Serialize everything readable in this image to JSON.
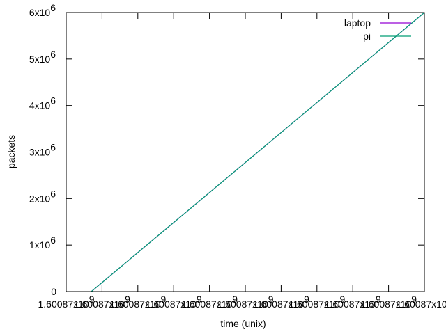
{
  "chart_data": {
    "type": "line",
    "title": "",
    "xlabel": "time (unix)",
    "ylabel": "packets",
    "y_ticks": [
      {
        "value": 0,
        "label": "0",
        "exp": ""
      },
      {
        "value": 1000000,
        "label": "1x10",
        "exp": "6"
      },
      {
        "value": 2000000,
        "label": "2x10",
        "exp": "6"
      },
      {
        "value": 3000000,
        "label": "3x10",
        "exp": "6"
      },
      {
        "value": 4000000,
        "label": "4x10",
        "exp": "6"
      },
      {
        "value": 5000000,
        "label": "5x10",
        "exp": "6"
      },
      {
        "value": 6000000,
        "label": "6x10",
        "exp": "6"
      }
    ],
    "x_ticks": [
      {
        "label": "1.60087x10",
        "exp": "9"
      },
      {
        "label": "1.60087x10",
        "exp": "9"
      },
      {
        "label": "1.60087x10",
        "exp": "9"
      },
      {
        "label": "1.60087x10",
        "exp": "9"
      },
      {
        "label": "1.60087x10",
        "exp": "9"
      },
      {
        "label": "1.60087x10",
        "exp": "9"
      },
      {
        "label": "1.60087x10",
        "exp": "9"
      },
      {
        "label": "1.60087x10",
        "exp": "9"
      },
      {
        "label": "1.60087x10",
        "exp": "9"
      },
      {
        "label": "1.60087x10",
        "exp": "9"
      },
      {
        "label": "1.60087x10",
        "exp": "9"
      }
    ],
    "xlim": [
      0,
      10
    ],
    "ylim": [
      0,
      6000000
    ],
    "grid": false,
    "legend_position": "top-right",
    "series": [
      {
        "name": "laptop",
        "color": "#9400d3",
        "x": [
          0.7,
          10
        ],
        "y": [
          0,
          6000000
        ]
      },
      {
        "name": "pi",
        "color": "#009e73",
        "x": [
          0.7,
          10
        ],
        "y": [
          0,
          6000000
        ]
      }
    ]
  }
}
